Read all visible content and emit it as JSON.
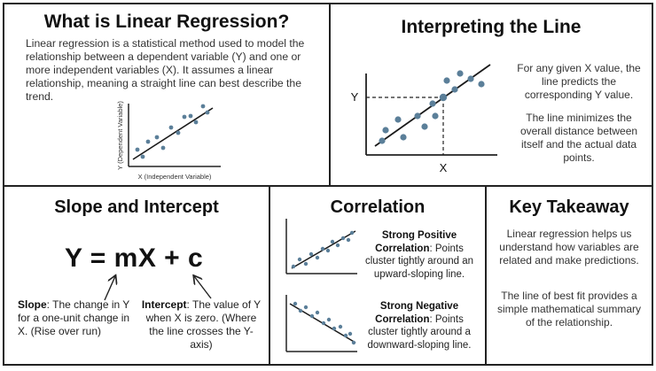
{
  "linear_regression": {
    "title": "What is Linear Regression?",
    "description": "Linear regression is a statistical method used to model the relationship between a dependent variable (Y) and one or more independent variables (X). It assumes a linear relationship, meaning a straight line can best describe the trend.",
    "y_axis_label": "Y (Dependent Variable)",
    "x_axis_label": "X (Independent Variable)"
  },
  "interpreting": {
    "title": "Interpreting the Line",
    "y_label": "Y",
    "x_label": "X",
    "text1": "For any given X value, the line predicts the corresponding Y value.",
    "text2": "The line minimizes the overall distance between itself and the actual data points."
  },
  "slope": {
    "title": "Slope and Intercept",
    "equation": "Y = mX + c",
    "slope_term": "Slope",
    "slope_text": ": The change in Y for a one-unit change in X. (Rise over run)",
    "intercept_term": "Intercept",
    "intercept_text": ": The value of Y when X is zero. (Where the line crosses the Y-axis)"
  },
  "correlation": {
    "title": "Correlation",
    "positive_term": "Strong Positive Correlation",
    "positive_text": ": Points cluster tightly around an upward-sloping line.",
    "negative_term": "Strong Negative Correlation",
    "negative_text": ": Points cluster tightly around a downward-sloping line."
  },
  "takeaway": {
    "title": "Key Takeaway",
    "text1": "Linear regression helps us understand how variables are related and make predictions.",
    "text2": "The line of best fit provides a simple mathematical summary of the relationship."
  },
  "colors": {
    "point": "#5b7f99",
    "line": "#1a1a1a",
    "border": "#222222"
  }
}
